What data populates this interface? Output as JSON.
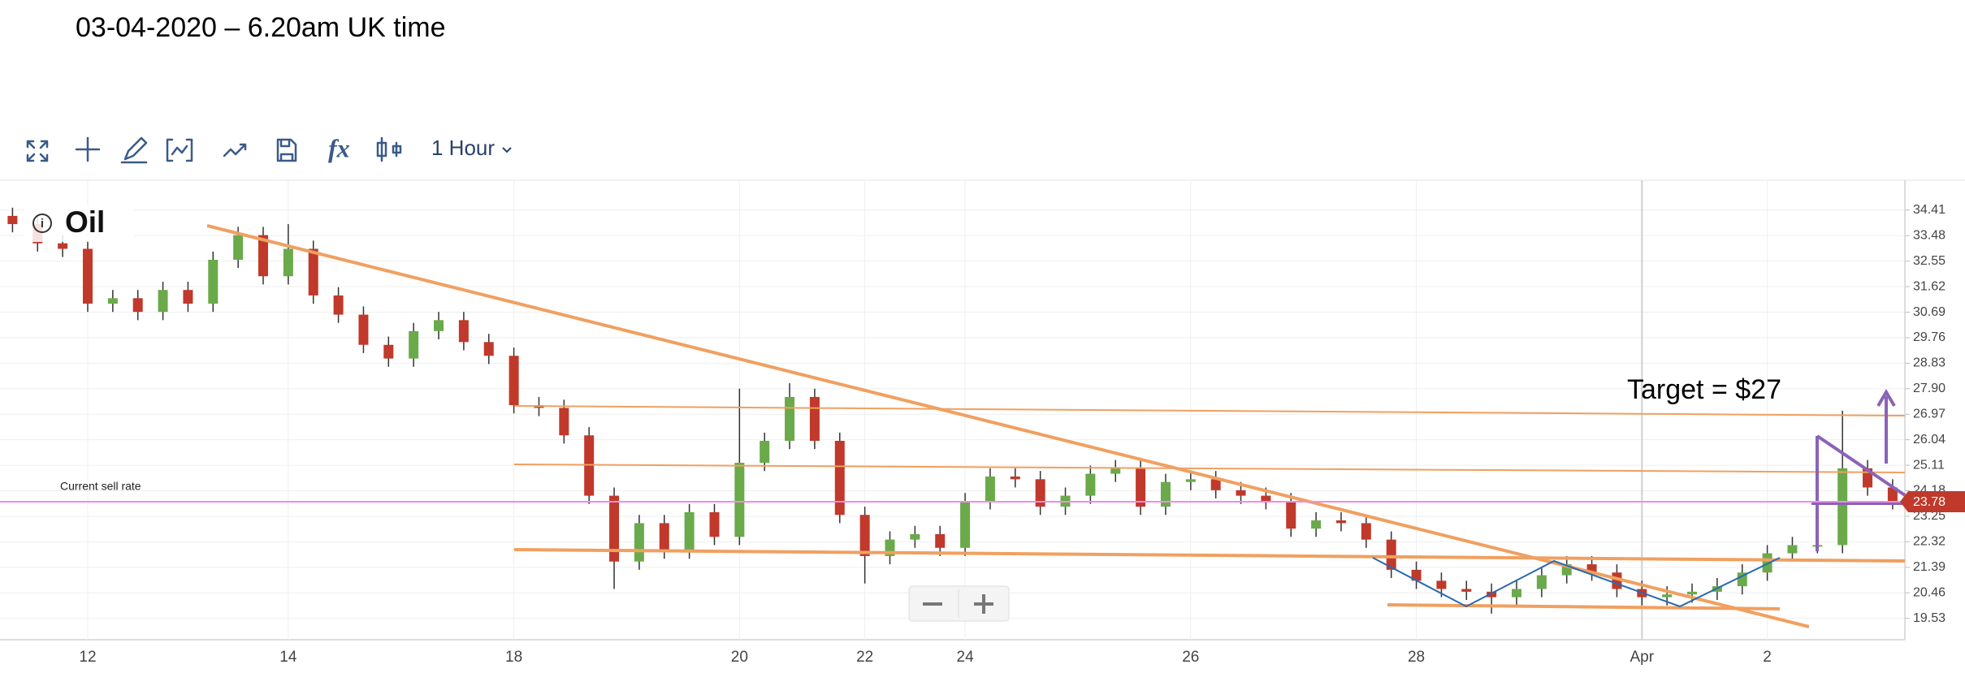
{
  "header": "03-04-2020 – 6.20am UK time",
  "toolbar": {
    "interval": "1 Hour"
  },
  "chart_data": {
    "type": "candlestick",
    "title": "Oil",
    "categories": [
      null,
      null,
      null,
      "12",
      null,
      null,
      null,
      null,
      null,
      null,
      null,
      "14",
      null,
      null,
      null,
      null,
      null,
      null,
      null,
      null,
      "18",
      null,
      null,
      null,
      null,
      null,
      null,
      null,
      null,
      "20",
      null,
      null,
      null,
      null,
      "22",
      null,
      null,
      null,
      "24",
      null,
      null,
      null,
      null,
      null,
      null,
      null,
      null,
      "26",
      null,
      null,
      null,
      null,
      null,
      null,
      null,
      null,
      "28",
      null,
      null,
      null,
      null,
      null,
      null,
      null,
      null,
      "Apr",
      null,
      null,
      null,
      null,
      "2",
      null,
      null,
      null,
      null,
      null
    ],
    "open": [
      34.2,
      33.9,
      33.2,
      33.0,
      31.0,
      31.2,
      30.7,
      31.5,
      31.0,
      32.6,
      33.5,
      32.0,
      33.0,
      31.3,
      30.6,
      29.5,
      29.0,
      30.0,
      30.4,
      29.6,
      29.1,
      27.3,
      27.2,
      26.2,
      24.0,
      21.6,
      23.0,
      22.0,
      23.4,
      22.5,
      25.2,
      26.0,
      27.6,
      26.0,
      23.3,
      21.8,
      22.4,
      22.6,
      22.1,
      23.8,
      24.7,
      24.6,
      23.6,
      24.0,
      24.8,
      25.0,
      23.6,
      24.5,
      24.6,
      24.2,
      24.0,
      23.8,
      22.8,
      23.1,
      23.0,
      22.4,
      21.3,
      20.9,
      20.6,
      20.5,
      20.3,
      20.6,
      21.1,
      21.5,
      21.2,
      20.6,
      20.3,
      20.4,
      20.5,
      20.7,
      21.2,
      21.9,
      22.2,
      22.2,
      25.0,
      24.3
    ],
    "high": [
      34.5,
      34.2,
      33.5,
      33.3,
      31.5,
      31.5,
      31.8,
      31.8,
      32.9,
      33.8,
      33.8,
      33.9,
      33.3,
      31.6,
      30.9,
      29.8,
      30.3,
      30.7,
      30.7,
      29.9,
      29.4,
      27.6,
      27.5,
      26.5,
      24.3,
      23.3,
      23.3,
      23.7,
      23.7,
      27.9,
      26.3,
      28.1,
      27.9,
      26.3,
      23.6,
      22.7,
      22.9,
      22.9,
      24.1,
      25.0,
      25.0,
      24.9,
      24.3,
      25.1,
      25.3,
      25.3,
      24.8,
      24.9,
      24.9,
      24.5,
      24.3,
      24.1,
      23.4,
      23.4,
      23.3,
      22.7,
      21.6,
      21.2,
      20.9,
      20.8,
      20.9,
      21.4,
      21.8,
      21.8,
      21.5,
      20.9,
      20.7,
      20.8,
      21.0,
      21.5,
      22.2,
      22.5,
      22.5,
      27.1,
      25.3,
      24.6
    ],
    "low": [
      33.6,
      32.9,
      32.7,
      30.7,
      30.7,
      30.4,
      30.4,
      30.7,
      30.7,
      32.3,
      31.7,
      31.7,
      31.0,
      30.3,
      29.2,
      28.7,
      28.7,
      29.7,
      29.3,
      28.8,
      27.0,
      26.9,
      25.9,
      23.7,
      20.6,
      21.3,
      21.7,
      21.7,
      22.2,
      22.2,
      24.9,
      25.7,
      25.7,
      23.0,
      20.8,
      21.5,
      22.1,
      21.8,
      21.8,
      23.5,
      24.3,
      23.3,
      23.3,
      23.7,
      24.5,
      23.3,
      23.3,
      24.2,
      23.9,
      23.7,
      23.5,
      22.5,
      22.5,
      22.7,
      22.1,
      21.0,
      20.6,
      20.3,
      20.2,
      19.7,
      20.0,
      20.3,
      20.8,
      20.9,
      20.3,
      20.0,
      20.0,
      20.1,
      20.2,
      20.4,
      20.9,
      21.6,
      21.9,
      21.9,
      24.0,
      23.5
    ],
    "close": [
      33.9,
      33.2,
      33.0,
      31.0,
      31.2,
      30.7,
      31.5,
      31.0,
      32.6,
      33.5,
      32.0,
      33.0,
      31.3,
      30.6,
      29.5,
      29.0,
      30.0,
      30.4,
      29.6,
      29.1,
      27.3,
      27.2,
      26.2,
      24.0,
      21.6,
      23.0,
      22.0,
      23.4,
      22.5,
      25.2,
      26.0,
      27.6,
      26.0,
      23.3,
      21.8,
      22.4,
      22.6,
      22.1,
      23.8,
      24.7,
      24.6,
      23.6,
      24.0,
      24.8,
      25.0,
      23.6,
      24.5,
      24.6,
      24.2,
      24.0,
      23.8,
      22.8,
      23.1,
      23.0,
      22.4,
      21.3,
      20.9,
      20.6,
      20.5,
      20.3,
      20.6,
      21.1,
      21.5,
      21.2,
      20.6,
      20.3,
      20.4,
      20.5,
      20.7,
      21.2,
      21.9,
      22.2,
      22.2,
      25.0,
      24.3,
      23.8
    ],
    "up_color": "#6aaa4a",
    "down_color": "#c0392b",
    "ylim": [
      18.75,
      35.5
    ],
    "yticks": [
      19.53,
      20.46,
      21.39,
      22.32,
      23.25,
      24.18,
      25.11,
      26.04,
      26.97,
      {
        "value": 27.9,
        "label": "27.90"
      },
      28.83,
      29.76,
      30.69,
      31.62,
      32.55,
      33.48,
      34.41
    ],
    "grid": true,
    "current_price": 23.78,
    "current_price_label": "Current sell rate",
    "annotation": "Target = $27"
  }
}
